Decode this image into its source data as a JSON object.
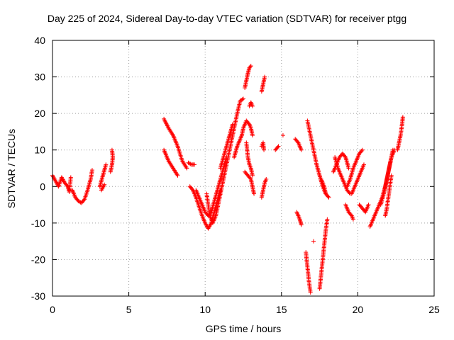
{
  "chart_data": {
    "type": "scatter",
    "title": "Day 225 of 2024, Sidereal Day-to-day VTEC variation (SDTVAR) for receiver ptgg",
    "xlabel": "GPS time / hours",
    "ylabel": "SDTVAR / TECUs",
    "xlim": [
      0,
      25
    ],
    "ylim": [
      -30,
      40
    ],
    "xticks": [
      "0",
      "5",
      "10",
      "15",
      "20",
      "25"
    ],
    "yticks": [
      "-30",
      "-20",
      "-10",
      "0",
      "10",
      "20",
      "30",
      "40"
    ],
    "grid": true,
    "marker": "+",
    "color": "#ff0000",
    "series": [
      {
        "segments": [
          [
            [
              0.0,
              3
            ],
            [
              0.2,
              1.5
            ],
            [
              0.4,
              0
            ],
            [
              0.6,
              2.5
            ],
            [
              0.8,
              1
            ],
            [
              1.0,
              0
            ],
            [
              1.1,
              -1.5
            ],
            [
              1.2,
              2.5
            ]
          ],
          [
            [
              1.3,
              -1
            ],
            [
              1.5,
              -3
            ],
            [
              1.7,
              -4
            ],
            [
              1.9,
              -4.5
            ],
            [
              2.1,
              -3.5
            ],
            [
              2.3,
              -1
            ],
            [
              2.5,
              2
            ],
            [
              2.6,
              4.5
            ]
          ],
          [
            [
              3.1,
              0
            ],
            [
              3.3,
              3
            ],
            [
              3.5,
              6
            ]
          ],
          [
            [
              3.2,
              -1
            ],
            [
              3.4,
              0.5
            ]
          ],
          [
            [
              3.8,
              4
            ],
            [
              3.9,
              6
            ],
            [
              3.95,
              8
            ],
            [
              3.9,
              10
            ]
          ],
          [
            [
              7.3,
              18.5
            ],
            [
              7.6,
              16
            ],
            [
              7.9,
              14
            ],
            [
              8.2,
              11
            ],
            [
              8.5,
              7
            ],
            [
              8.8,
              5
            ]
          ],
          [
            [
              7.3,
              10
            ],
            [
              7.6,
              7
            ],
            [
              7.9,
              5
            ],
            [
              8.2,
              3
            ]
          ],
          [
            [
              8.9,
              6.5
            ],
            [
              9.1,
              6
            ],
            [
              9.3,
              6
            ]
          ],
          [
            [
              9.0,
              0
            ],
            [
              9.2,
              -1
            ],
            [
              9.4,
              -3
            ],
            [
              9.6,
              -5.5
            ],
            [
              9.8,
              -8
            ],
            [
              10.0,
              -10
            ],
            [
              10.2,
              -11.5
            ],
            [
              10.4,
              -10
            ],
            [
              10.6,
              -7
            ],
            [
              10.8,
              -4
            ],
            [
              11.0,
              -1
            ]
          ],
          [
            [
              9.4,
              -1
            ],
            [
              9.6,
              -3
            ],
            [
              9.8,
              -5
            ],
            [
              10.0,
              -7
            ],
            [
              10.2,
              -8
            ],
            [
              10.4,
              -7
            ],
            [
              10.6,
              -4
            ],
            [
              10.8,
              -1
            ],
            [
              11.0,
              2
            ],
            [
              11.2,
              5
            ],
            [
              11.4,
              8
            ]
          ],
          [
            [
              10.1,
              -2
            ],
            [
              10.2,
              -5
            ],
            [
              10.3,
              -8
            ],
            [
              10.5,
              -10
            ],
            [
              10.7,
              -8
            ],
            [
              10.9,
              -4
            ],
            [
              11.1,
              0
            ],
            [
              11.3,
              4
            ],
            [
              11.5,
              8
            ],
            [
              11.7,
              12
            ],
            [
              11.9,
              16
            ],
            [
              12.1,
              20
            ],
            [
              12.3,
              23.5
            ],
            [
              12.5,
              24
            ]
          ],
          [
            [
              11.0,
              5
            ],
            [
              11.2,
              8
            ],
            [
              11.4,
              11
            ],
            [
              11.6,
              14
            ],
            [
              11.8,
              17
            ]
          ],
          [
            [
              11.9,
              8
            ],
            [
              12.1,
              11
            ],
            [
              12.3,
              13
            ],
            [
              12.4,
              14
            ]
          ],
          [
            [
              12.4,
              14
            ],
            [
              12.5,
              16
            ],
            [
              12.6,
              17
            ],
            [
              12.7,
              18
            ],
            [
              12.9,
              17
            ],
            [
              13.0,
              16
            ],
            [
              13.1,
              14
            ]
          ],
          [
            [
              12.6,
              27
            ],
            [
              12.7,
              29
            ],
            [
              12.8,
              31
            ],
            [
              12.9,
              32.5
            ],
            [
              13.0,
              33
            ]
          ],
          [
            [
              12.9,
              22
            ],
            [
              13.0,
              23
            ],
            [
              13.1,
              22
            ]
          ],
          [
            [
              12.6,
              4
            ],
            [
              12.8,
              3
            ],
            [
              13.0,
              2
            ],
            [
              13.1,
              0
            ],
            [
              13.2,
              -2
            ]
          ],
          [
            [
              12.7,
              12
            ],
            [
              12.8,
              8
            ],
            [
              12.9,
              6
            ],
            [
              13.0,
              5
            ],
            [
              13.1,
              3
            ]
          ],
          [
            [
              13.7,
              26
            ],
            [
              13.8,
              28
            ],
            [
              13.9,
              30
            ]
          ],
          [
            [
              13.7,
              11
            ],
            [
              13.8,
              12
            ],
            [
              13.85,
              10
            ]
          ],
          [
            [
              13.7,
              -3
            ],
            [
              13.8,
              -1
            ],
            [
              13.9,
              1
            ],
            [
              14.0,
              2
            ]
          ],
          [
            [
              14.6,
              10
            ],
            [
              14.8,
              11
            ]
          ],
          [
            [
              15.1,
              14
            ]
          ],
          [
            [
              15.9,
              13
            ],
            [
              16.1,
              12
            ],
            [
              16.3,
              10
            ]
          ],
          [
            [
              16.0,
              -7
            ],
            [
              16.2,
              -9
            ],
            [
              16.3,
              -10.5
            ]
          ],
          [
            [
              16.6,
              -18
            ],
            [
              16.7,
              -22
            ],
            [
              16.8,
              -26
            ],
            [
              16.9,
              -29
            ]
          ],
          [
            [
              16.7,
              18
            ],
            [
              16.9,
              14
            ],
            [
              17.1,
              10
            ],
            [
              17.3,
              6
            ],
            [
              17.5,
              3
            ],
            [
              17.7,
              0
            ],
            [
              17.9,
              -2
            ]
          ],
          [
            [
              17.1,
              -15
            ]
          ],
          [
            [
              17.5,
              -28
            ],
            [
              17.6,
              -24
            ],
            [
              17.7,
              -20
            ],
            [
              17.8,
              -16
            ],
            [
              17.9,
              -12
            ],
            [
              18.0,
              -9
            ]
          ],
          [
            [
              17.6,
              2
            ],
            [
              17.8,
              0
            ],
            [
              17.9,
              -2
            ],
            [
              18.1,
              -3
            ]
          ],
          [
            [
              18.4,
              4
            ],
            [
              18.6,
              6
            ],
            [
              18.8,
              8
            ],
            [
              19.0,
              9
            ],
            [
              19.2,
              8
            ],
            [
              19.4,
              5
            ]
          ],
          [
            [
              18.5,
              8
            ],
            [
              18.7,
              5
            ],
            [
              18.9,
              3
            ],
            [
              19.1,
              1
            ],
            [
              19.3,
              -1
            ],
            [
              19.5,
              -2
            ]
          ],
          [
            [
              19.2,
              -5
            ],
            [
              19.4,
              -7
            ],
            [
              19.6,
              -8
            ],
            [
              19.7,
              -9
            ]
          ],
          [
            [
              19.3,
              0
            ],
            [
              19.5,
              2
            ],
            [
              19.7,
              5
            ],
            [
              19.9,
              7
            ],
            [
              20.1,
              9
            ],
            [
              20.3,
              10
            ]
          ],
          [
            [
              19.6,
              -2
            ],
            [
              19.8,
              0
            ],
            [
              20.0,
              2
            ],
            [
              20.2,
              4
            ],
            [
              20.4,
              6
            ]
          ],
          [
            [
              20.1,
              -5
            ],
            [
              20.3,
              -6
            ],
            [
              20.5,
              -7
            ],
            [
              20.7,
              -5
            ]
          ],
          [
            [
              20.8,
              -11
            ],
            [
              21.0,
              -9
            ],
            [
              21.2,
              -7
            ],
            [
              21.4,
              -5
            ],
            [
              21.6,
              -3
            ],
            [
              21.8,
              0
            ],
            [
              22.0,
              4
            ],
            [
              22.2,
              8
            ],
            [
              22.3,
              10
            ]
          ],
          [
            [
              21.5,
              -5
            ],
            [
              21.7,
              -2
            ],
            [
              21.9,
              2
            ],
            [
              22.1,
              6
            ],
            [
              22.2,
              8
            ],
            [
              22.4,
              10
            ]
          ],
          [
            [
              21.8,
              -8
            ],
            [
              21.9,
              -6
            ],
            [
              22.0,
              -3
            ],
            [
              22.1,
              0
            ],
            [
              22.2,
              3
            ]
          ],
          [
            [
              22.6,
              10
            ],
            [
              22.7,
              12
            ],
            [
              22.8,
              14
            ],
            [
              22.9,
              17
            ],
            [
              22.95,
              19
            ]
          ]
        ]
      }
    ]
  }
}
